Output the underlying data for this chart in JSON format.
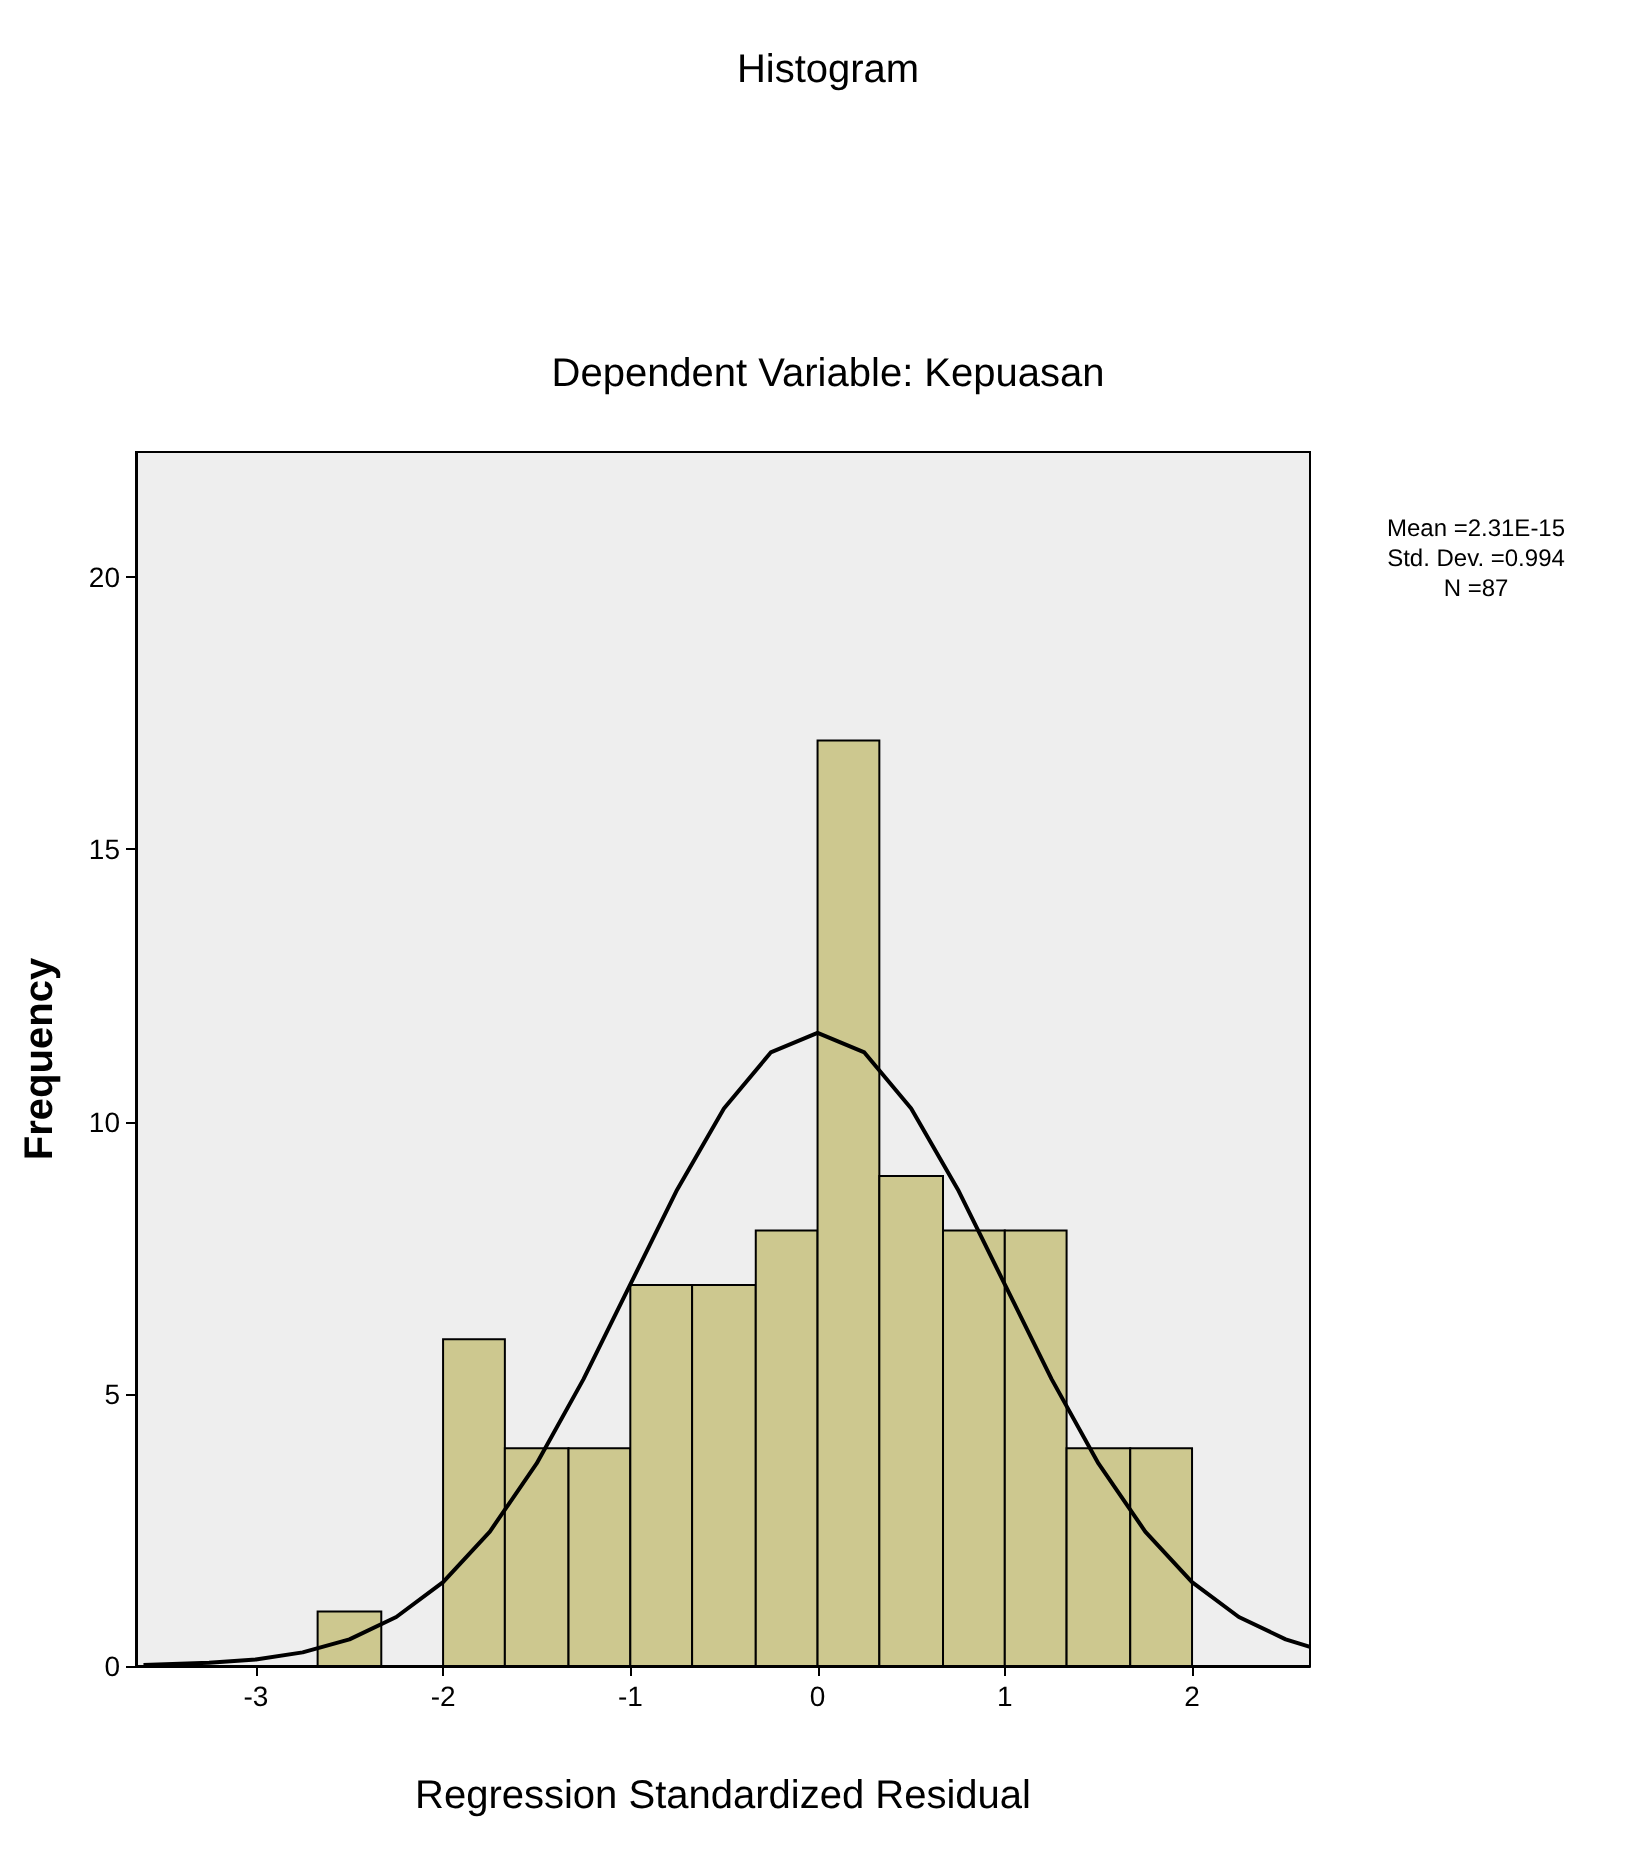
{
  "chart_data": {
    "type": "histogram",
    "title": "Histogram",
    "subtitle": "Dependent Variable: Kepuasan",
    "xlabel": "Regression Standardized Residual",
    "ylabel": "Frequency",
    "bins": [
      -2.67,
      -2.33,
      -2,
      -1.67,
      -1.33,
      -1,
      -0.67,
      -0.33,
      0,
      0.33,
      0.67,
      1,
      1.33,
      1.67,
      2
    ],
    "values": [
      1,
      0,
      6,
      4,
      4,
      7,
      7,
      8,
      17,
      9,
      8,
      8,
      4,
      4
    ],
    "color": "#cdc88f",
    "series": [
      {
        "type": "line",
        "color": "#000000",
        "x": [
          -3.6,
          -3.25,
          -3,
          -2.75,
          -2.5,
          -2.25,
          -2,
          -1.75,
          -1.5,
          -1.25,
          -1,
          -0.75,
          -0.5,
          -0.25,
          0,
          0.25,
          0.5,
          0.75,
          1,
          1.25,
          1.5,
          1.75,
          2,
          2.25,
          2.5,
          2.63
        ],
        "values": [
          0.02,
          0.06,
          0.12,
          0.25,
          0.49,
          0.9,
          1.54,
          2.47,
          3.72,
          5.27,
          7.01,
          8.75,
          10.24,
          11.27,
          11.63,
          11.27,
          10.24,
          8.75,
          7.01,
          5.27,
          3.72,
          2.47,
          1.54,
          0.9,
          0.49,
          0.35
        ]
      }
    ],
    "xlim": [
      -3.64,
      2.63
    ],
    "xticks": [
      -3,
      -2,
      -1,
      0,
      1,
      2
    ],
    "ylim": [
      0,
      22.3
    ],
    "yticks": [
      0,
      5,
      10,
      15,
      20
    ],
    "grid": false,
    "marker": "none",
    "line_style": "solid",
    "annotations": [
      "Mean =2.31E-15",
      "Std. Dev. =0.994",
      "N =87"
    ]
  }
}
